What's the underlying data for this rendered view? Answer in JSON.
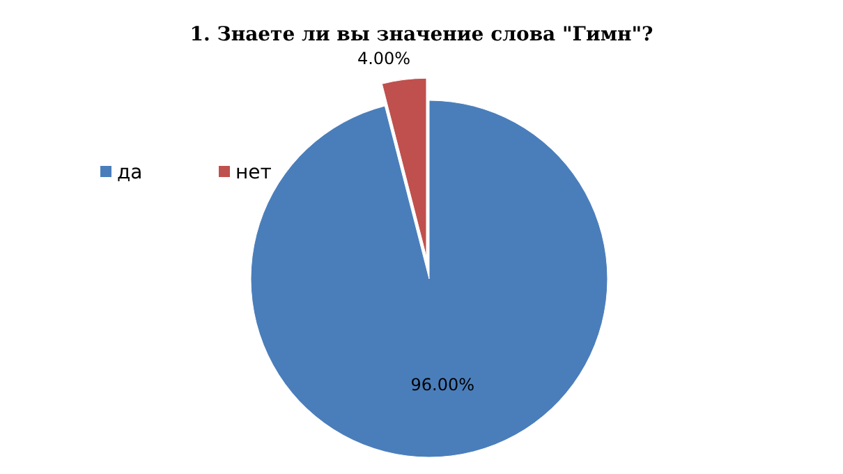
{
  "chart_data": {
    "type": "pie",
    "title": "1. Знаете ли вы значение слова \"Гимн\"?",
    "categories": [
      "да",
      "нет"
    ],
    "values": [
      96,
      4
    ],
    "colors": [
      "#4a7ebb",
      "#c0504d"
    ],
    "value_labels": [
      "96.00%",
      "4.00%"
    ],
    "legend": "left"
  }
}
